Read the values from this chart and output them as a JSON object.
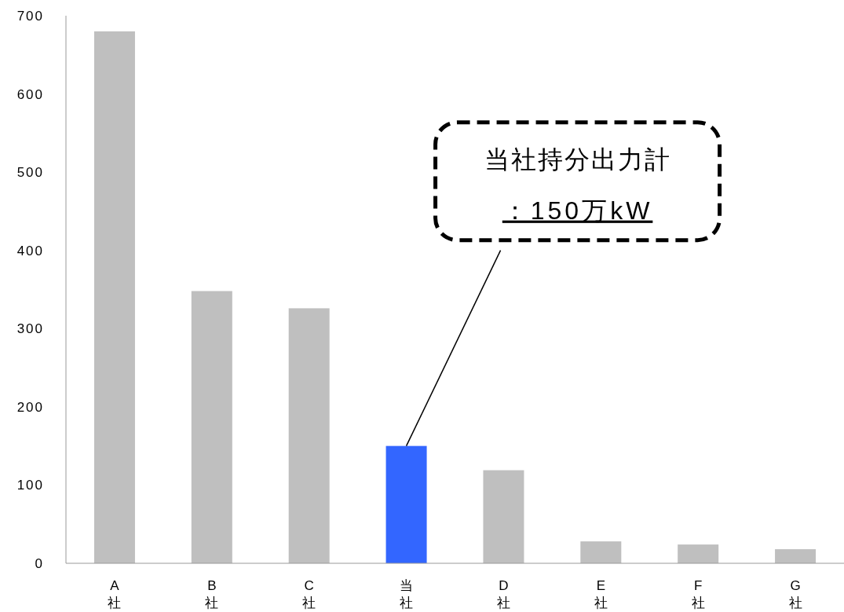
{
  "chart_data": {
    "type": "bar",
    "categories": [
      "A社",
      "B社",
      "C社",
      "当社",
      "D社",
      "E社",
      "F社",
      "G社"
    ],
    "values": [
      680,
      348,
      326,
      150,
      119,
      28,
      24,
      18
    ],
    "colors": [
      "#bfbfbf",
      "#bfbfbf",
      "#bfbfbf",
      "#3366ff",
      "#bfbfbf",
      "#bfbfbf",
      "#bfbfbf",
      "#bfbfbf"
    ],
    "ylim": [
      0,
      700
    ],
    "yticks": [
      0,
      100,
      200,
      300,
      400,
      500,
      600,
      700
    ],
    "grid": false,
    "annotations": [
      {
        "text": "当社持分出力計：150万kW",
        "x": "当社",
        "y": 150
      }
    ]
  }
}
